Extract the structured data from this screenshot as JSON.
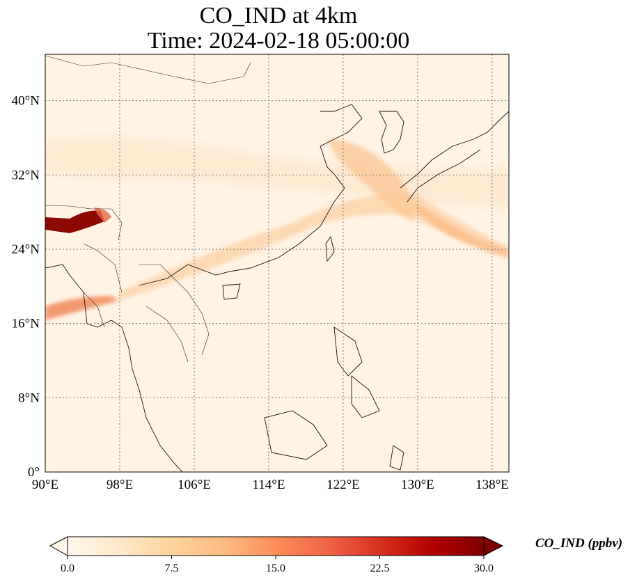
{
  "title": {
    "line1": "CO_IND at 4km",
    "line2": "Time: 2024-02-18 05:00:00"
  },
  "map": {
    "lon_range": [
      90,
      139.8
    ],
    "lat_range": [
      0,
      45
    ],
    "lon_ticks": [
      "90°E",
      "98°E",
      "106°E",
      "114°E",
      "122°E",
      "130°E",
      "138°E"
    ],
    "lat_ticks": [
      "0°",
      "8°N",
      "16°N",
      "24°N",
      "32°N",
      "40°N"
    ],
    "gridlines": "dotted",
    "colormap": "OrRd"
  },
  "colorbar": {
    "label": "CO_IND (ppbv)",
    "ticks": [
      "0.0",
      "7.5",
      "15.0",
      "22.5",
      "30.0"
    ],
    "min": 0,
    "max": 30,
    "extend": "both",
    "colors": [
      "#fff7ec",
      "#fee8c8",
      "#fdd49e",
      "#fdbb84",
      "#fc8d59",
      "#ef6548",
      "#d7301f",
      "#b30000",
      "#7f0000"
    ]
  }
}
